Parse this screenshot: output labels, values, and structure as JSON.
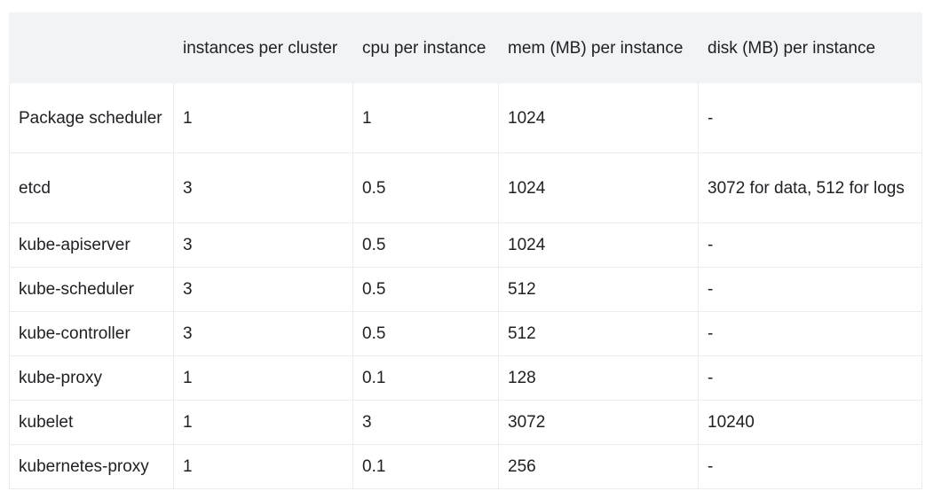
{
  "table": {
    "headers": [
      "",
      "instances per cluster",
      "cpu per instance",
      "mem (MB) per instance",
      "disk (MB) per instance"
    ],
    "rows": [
      [
        "Package scheduler",
        "1",
        "1",
        "1024",
        "-"
      ],
      [
        "etcd",
        "3",
        "0.5",
        "1024",
        "3072 for data, 512 for logs"
      ],
      [
        "kube-apiserver",
        "3",
        "0.5",
        "1024",
        "-"
      ],
      [
        "kube-scheduler",
        "3",
        "0.5",
        "512",
        "-"
      ],
      [
        "kube-controller",
        "3",
        "0.5",
        "512",
        "-"
      ],
      [
        "kube-proxy",
        "1",
        "0.1",
        "128",
        "-"
      ],
      [
        "kubelet",
        "1",
        "3",
        "3072",
        "10240"
      ],
      [
        "kubernetes-proxy",
        "1",
        "0.1",
        "256",
        "-"
      ]
    ]
  }
}
